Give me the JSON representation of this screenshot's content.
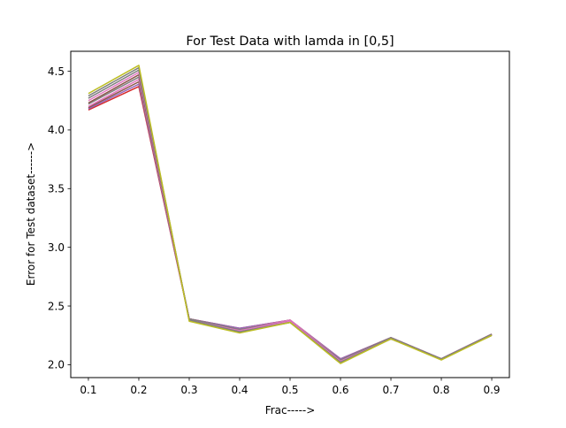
{
  "chart_data": {
    "type": "line",
    "title": "For Test Data with lamda in [0,5]",
    "xlabel": "Frac----->",
    "ylabel": "Error for Test dataset------>",
    "x": [
      0.1,
      0.2,
      0.3,
      0.4,
      0.5,
      0.6,
      0.7,
      0.8,
      0.9
    ],
    "x_ticks": [
      "0.1",
      "0.2",
      "0.3",
      "0.4",
      "0.5",
      "0.6",
      "0.7",
      "0.8",
      "0.9"
    ],
    "y_ticks": [
      "2.0",
      "2.5",
      "3.0",
      "3.5",
      "4.0",
      "4.5"
    ],
    "xlim": [
      0.065,
      0.935
    ],
    "ylim": [
      1.89,
      4.67
    ],
    "grid": false,
    "legend": "none",
    "series": [
      {
        "color": "#d62728",
        "values": [
          4.17,
          4.37,
          2.39,
          2.31,
          2.38,
          2.05,
          2.23,
          2.05,
          2.26
        ]
      },
      {
        "color": "#9467bd",
        "values": [
          4.18,
          4.39,
          2.39,
          2.31,
          2.38,
          2.05,
          2.23,
          2.05,
          2.26
        ]
      },
      {
        "color": "#8c564b",
        "values": [
          4.19,
          4.41,
          2.39,
          2.3,
          2.38,
          2.04,
          2.23,
          2.05,
          2.26
        ]
      },
      {
        "color": "#e377c2",
        "values": [
          4.2,
          4.43,
          2.39,
          2.3,
          2.38,
          2.04,
          2.23,
          2.05,
          2.26
        ]
      },
      {
        "color": "#7f7f7f",
        "values": [
          4.22,
          4.45,
          2.39,
          2.3,
          2.37,
          2.04,
          2.23,
          2.05,
          2.26
        ]
      },
      {
        "color": "#8c564b",
        "values": [
          4.23,
          4.47,
          2.38,
          2.29,
          2.37,
          2.03,
          2.22,
          2.05,
          2.25
        ]
      },
      {
        "color": "#e377c2",
        "values": [
          4.25,
          4.49,
          2.38,
          2.29,
          2.37,
          2.03,
          2.22,
          2.05,
          2.25
        ]
      },
      {
        "color": "#7f7f7f",
        "values": [
          4.27,
          4.51,
          2.38,
          2.28,
          2.36,
          2.02,
          2.22,
          2.05,
          2.25
        ]
      },
      {
        "color": "#7f7f7f",
        "values": [
          4.29,
          4.53,
          2.38,
          2.28,
          2.36,
          2.02,
          2.22,
          2.05,
          2.25
        ]
      },
      {
        "color": "#bcbd22",
        "values": [
          4.31,
          4.55,
          2.37,
          2.27,
          2.36,
          2.01,
          2.22,
          2.04,
          2.25
        ]
      }
    ]
  }
}
